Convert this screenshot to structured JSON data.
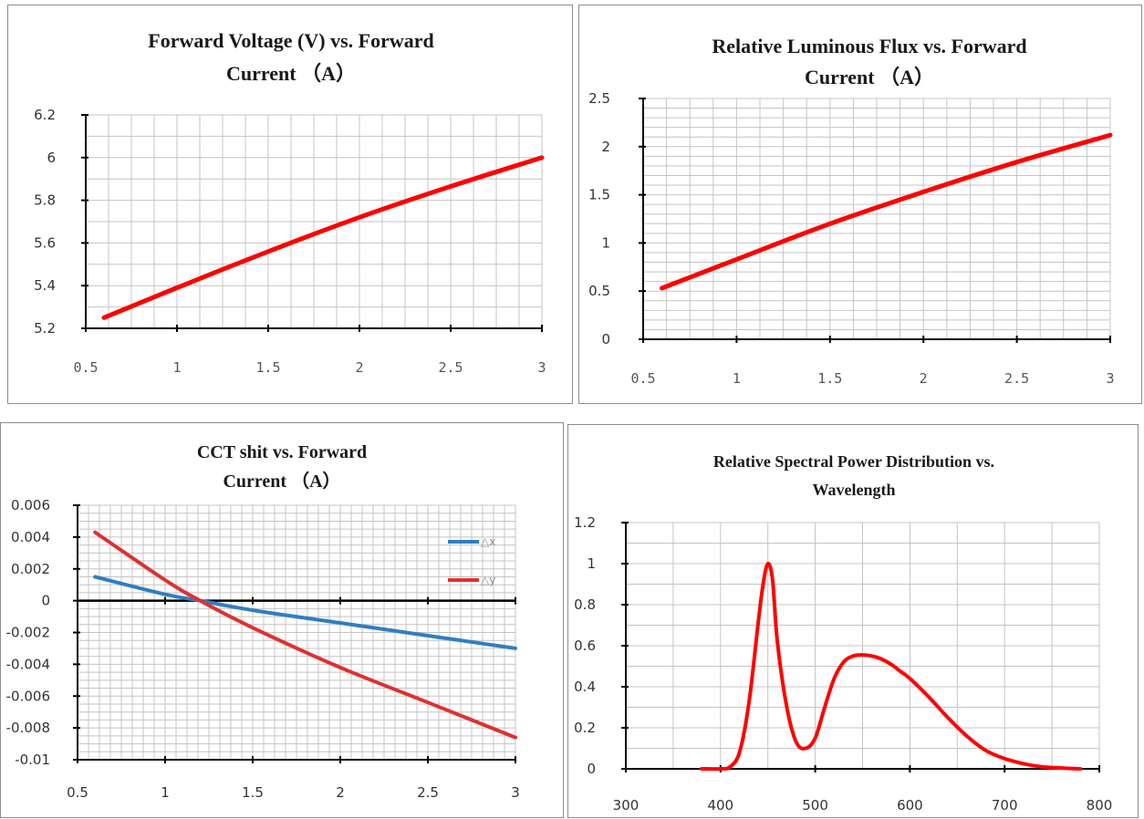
{
  "colors": {
    "series_red": "#ff0000",
    "dx_blue": "#2f7ec2",
    "dy_red": "#e03030",
    "grid": "#c4c4c4",
    "axis": "#000000",
    "border": "#8c8c8c"
  },
  "chart_data": [
    {
      "type": "line",
      "title_lines": [
        "Forward Voltage (V) vs. Forward",
        "Current （A）"
      ],
      "xlabel": "",
      "ylabel": "",
      "xlim": [
        0.5,
        3
      ],
      "ylim": [
        5.2,
        6.2
      ],
      "xticks": [
        "0.5",
        "1",
        "1.5",
        "2",
        "2.5",
        "3"
      ],
      "yticks": [
        "6.2",
        "6",
        "5.8",
        "5.6",
        "5.4",
        "5.2"
      ],
      "grid": true,
      "legend": "none",
      "series": [
        {
          "color": "#ff0000",
          "x": [
            0.6,
            1.0,
            1.5,
            2.0,
            2.5,
            3.0
          ],
          "y": [
            5.25,
            5.39,
            5.56,
            5.72,
            5.865,
            6.0
          ]
        }
      ]
    },
    {
      "type": "line",
      "title_lines": [
        "Relative Luminous Flux vs. Forward",
        "Current （A）"
      ],
      "xlabel": "",
      "ylabel": "",
      "xlim": [
        0.5,
        3
      ],
      "ylim": [
        0,
        2.5
      ],
      "xticks": [
        "0.5",
        "1",
        "1.5",
        "2",
        "2.5",
        "3"
      ],
      "yticks": [
        "2.5",
        "2",
        "1.5",
        "1",
        "0.5",
        "0"
      ],
      "grid": true,
      "legend": "none",
      "series": [
        {
          "color": "#ff0000",
          "x": [
            0.6,
            1.0,
            1.5,
            2.0,
            2.5,
            3.0
          ],
          "y": [
            0.53,
            0.83,
            1.2,
            1.53,
            1.84,
            2.12
          ]
        }
      ]
    },
    {
      "type": "line",
      "title_lines": [
        "CCT shit vs. Forward",
        "Current （A）"
      ],
      "xlabel": "",
      "ylabel": "",
      "xlim": [
        0.5,
        3
      ],
      "ylim": [
        -0.01,
        0.006
      ],
      "xticks": [
        "0.5",
        "1",
        "1.5",
        "2",
        "2.5",
        "3"
      ],
      "yticks": [
        "0.006",
        "0.004",
        "0.002",
        "0",
        "-0.002",
        "-0.004",
        "-0.006",
        "-0.008",
        "-0.01"
      ],
      "grid": true,
      "legend": "right",
      "series": [
        {
          "name": "△x",
          "color": "#2f7ec2",
          "x": [
            0.6,
            1.0,
            1.2,
            1.5,
            2.0,
            2.5,
            3.0
          ],
          "y": [
            0.0015,
            0.0004,
            0.0,
            -0.0006,
            -0.0014,
            -0.0022,
            -0.003
          ]
        },
        {
          "name": "△y",
          "color": "#e03030",
          "x": [
            0.6,
            1.0,
            1.2,
            1.5,
            2.0,
            2.5,
            3.0
          ],
          "y": [
            0.0043,
            0.0013,
            0.0,
            -0.0017,
            -0.0042,
            -0.0064,
            -0.0086
          ]
        }
      ]
    },
    {
      "type": "line",
      "title_lines": [
        "Relative Spectral Power Distribution vs.",
        "Wavelength"
      ],
      "xlabel": "",
      "ylabel": "",
      "xlim": [
        300,
        800
      ],
      "ylim": [
        0,
        1.2
      ],
      "xticks": [
        "300",
        "400",
        "500",
        "600",
        "700",
        "800"
      ],
      "yticks": [
        "1.2",
        "1",
        "0.8",
        "0.6",
        "0.4",
        "0.2",
        "0"
      ],
      "grid": true,
      "legend": "none",
      "series": [
        {
          "color": "#ff0000",
          "x": [
            380,
            400,
            410,
            420,
            430,
            440,
            445,
            450,
            455,
            460,
            470,
            480,
            490,
            500,
            510,
            520,
            530,
            540,
            550,
            560,
            570,
            580,
            590,
            600,
            620,
            640,
            660,
            680,
            700,
            720,
            740,
            760,
            780
          ],
          "y": [
            0.0,
            0.0,
            0.01,
            0.08,
            0.32,
            0.72,
            0.9,
            1.0,
            0.92,
            0.62,
            0.3,
            0.13,
            0.1,
            0.15,
            0.3,
            0.44,
            0.52,
            0.55,
            0.555,
            0.55,
            0.535,
            0.51,
            0.475,
            0.44,
            0.35,
            0.25,
            0.16,
            0.09,
            0.05,
            0.025,
            0.01,
            0.004,
            0.0
          ]
        }
      ]
    }
  ]
}
